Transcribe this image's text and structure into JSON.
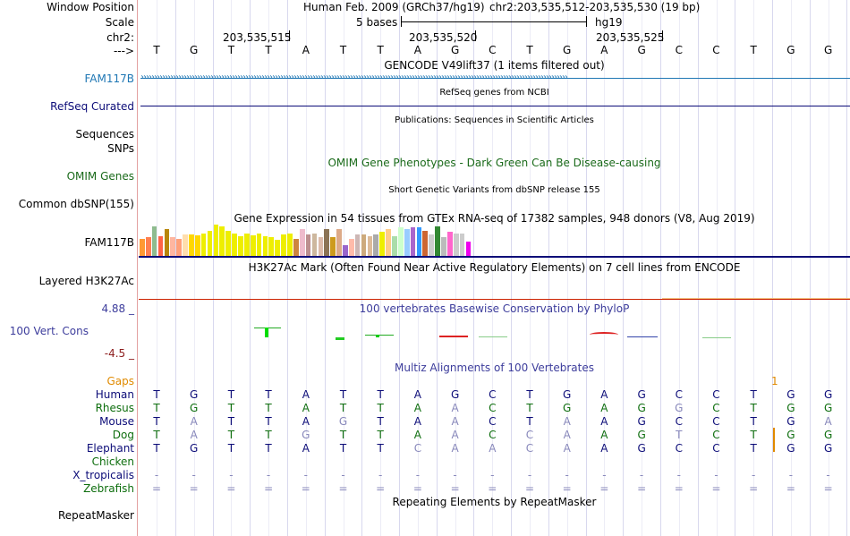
{
  "left_labels": {
    "window_position": "Window Position",
    "scale": "Scale",
    "chr": "chr2:",
    "arrow": "--->",
    "fam117b_gencode": "FAM117B",
    "refseq_curated": "RefSeq Curated",
    "sequences": "Sequences",
    "snps": "SNPs",
    "omim_genes": "OMIM Genes",
    "common_dbsnp": "Common dbSNP(155)",
    "fam117b_gtex": "FAM117B",
    "layered_h3k27ac": "Layered H3K27Ac",
    "phylop_max": "4.88 _",
    "vert_cons": "100 Vert. Cons",
    "phylop_min": "-4.5 _",
    "gaps": "Gaps",
    "species": [
      "Human",
      "Rhesus",
      "Mouse",
      "Dog",
      "Elephant",
      "Chicken",
      "X_tropicalis",
      "Zebrafish"
    ],
    "repeatmasker": "RepeatMasker"
  },
  "header": {
    "assembly": "Human Feb. 2009 (GRCh37/hg19)",
    "position": "chr2:203,535,512-203,535,530 (19 bp)",
    "scale_text": "5 bases",
    "scale_db": "hg19",
    "ticks": [
      "203,535,515",
      "203,535,520",
      "203,535,525"
    ]
  },
  "tracks": {
    "gencode": "GENCODE V49lift37 (1 items filtered out)",
    "refseq": "RefSeq genes from NCBI",
    "publications": "Publications: Sequences in Scientific Articles",
    "omim": "OMIM Gene Phenotypes - Dark Green Can Be Disease-causing",
    "dbsnp": "Short Genetic Variants from dbSNP release 155",
    "gtex": "Gene Expression in 54 tissues from GTEx RNA-seq of 17382 samples, 948 donors (V8, Aug 2019)",
    "h3k27ac": "H3K27Ac Mark (Often Found Near Active Regulatory Elements) on 7 cell lines from ENCODE",
    "phylop": "100 vertebrates Basewise Conservation by PhyloP",
    "multiz": "Multiz Alignments of 100 Vertebrates",
    "gap_mark": "1",
    "repeatmasker": "Repeating Elements by RepeatMasker"
  },
  "sequence": [
    "T",
    "G",
    "T",
    "T",
    "A",
    "T",
    "T",
    "A",
    "G",
    "C",
    "T",
    "G",
    "A",
    "G",
    "C",
    "C",
    "T",
    "G",
    "G"
  ],
  "alignment": [
    {
      "species": "Human",
      "bases": [
        "T",
        "G",
        "T",
        "T",
        "A",
        "T",
        "T",
        "A",
        "G",
        "C",
        "T",
        "G",
        "A",
        "G",
        "C",
        "C",
        "T",
        "G",
        "G"
      ]
    },
    {
      "species": "Rhesus",
      "bases": [
        "T",
        "G",
        "T",
        "T",
        "A",
        "T",
        "T",
        "A",
        "A",
        "C",
        "T",
        "G",
        "A",
        "G",
        "G",
        "C",
        "T",
        "G",
        "G"
      ]
    },
    {
      "species": "Mouse",
      "bases": [
        "T",
        "A",
        "T",
        "T",
        "A",
        "G",
        "T",
        "A",
        "A",
        "C",
        "T",
        "A",
        "A",
        "G",
        "C",
        "C",
        "T",
        "G",
        "A"
      ]
    },
    {
      "species": "Dog",
      "bases": [
        "T",
        "A",
        "T",
        "T",
        "G",
        "T",
        "T",
        "A",
        "A",
        "C",
        "C",
        "A",
        "A",
        "G",
        "T",
        "C",
        "T",
        "G",
        "G"
      ]
    },
    {
      "species": "Elephant",
      "bases": [
        "T",
        "G",
        "T",
        "T",
        "A",
        "T",
        "T",
        "C",
        "A",
        "A",
        "C",
        "A",
        "A",
        "G",
        "C",
        "C",
        "T",
        "G",
        "G"
      ]
    },
    {
      "species": "Chicken",
      "bases": [
        "",
        "",
        "",
        "",
        "",
        "",
        "",
        "",
        "",
        "",
        "",
        "",
        "",
        "",
        "",
        "",
        "",
        "",
        ""
      ]
    },
    {
      "species": "X_tropicalis",
      "bases": [
        "-",
        "-",
        "-",
        "-",
        "-",
        "-",
        "-",
        "-",
        "-",
        "-",
        "-",
        "-",
        "-",
        "-",
        "-",
        "-",
        "-",
        "-",
        "-"
      ]
    },
    {
      "species": "Zebrafish",
      "bases": [
        "=",
        "=",
        "=",
        "=",
        "=",
        "=",
        "=",
        "=",
        "=",
        "=",
        "=",
        "=",
        "=",
        "=",
        "=",
        "=",
        "=",
        "=",
        "="
      ]
    }
  ],
  "colors": {
    "gencode_blue": "#1f77b4",
    "refseq_navy": "#0c0c78",
    "omim_green": "#1a6a1a",
    "phylop_blue": "#3d3d9c",
    "phylop_red": "#8c1c1c",
    "gaps_orange": "#e08a00",
    "species_navy": "#0c0c78",
    "species_green": "#0e6e0e",
    "mismatch_gray": "#8888bb"
  },
  "gtex_values": [
    0.55,
    0.6,
    0.95,
    0.62,
    0.85,
    0.6,
    0.55,
    0.68,
    0.68,
    0.65,
    0.7,
    0.8,
    1.0,
    0.95,
    0.8,
    0.72,
    0.62,
    0.72,
    0.65,
    0.7,
    0.62,
    0.6,
    0.5,
    0.68,
    0.7,
    0.55,
    0.85,
    0.68,
    0.72,
    0.6,
    0.85,
    0.6,
    0.85,
    0.35,
    0.55,
    0.68,
    0.68,
    0.62,
    0.68,
    0.78,
    0.85,
    0.62,
    0.9,
    0.85,
    0.9,
    0.92,
    0.8,
    0.68,
    0.95,
    0.6,
    0.78,
    0.72,
    0.72,
    0.45
  ],
  "gtex_colors": [
    "#ff9933",
    "#ff7f50",
    "#8fbc8f",
    "#ff6347",
    "#b8860b",
    "#ffb6a0",
    "#ffa07a",
    "#ffdead",
    "#ffd700",
    "#ffd700",
    "#eeee00",
    "#eeee00",
    "#eeee00",
    "#eeee00",
    "#eeee00",
    "#eeee00",
    "#eeee00",
    "#eeee00",
    "#eeee00",
    "#eeee00",
    "#eeee00",
    "#eeee00",
    "#eeee00",
    "#eeee00",
    "#eeee00",
    "#cd853f",
    "#eebbcc",
    "#bc8f8f",
    "#cdb79e",
    "#ddbbaa",
    "#8b7355",
    "#cd9b1d",
    "#ddaa88",
    "#9966cc",
    "#ffbbaa",
    "#cdb7b5",
    "#cdaa7d",
    "#ddbb99",
    "#aaaaaa",
    "#eeee00",
    "#ffcc88",
    "#aaddaa",
    "#ccffcc",
    "#99ccff",
    "#aa66cc",
    "#3399ff",
    "#cc6633",
    "#cdcdcd",
    "#338833",
    "#bbbbbb",
    "#ff66cc",
    "#cccccc",
    "#cccccc",
    "#ee00ee"
  ]
}
